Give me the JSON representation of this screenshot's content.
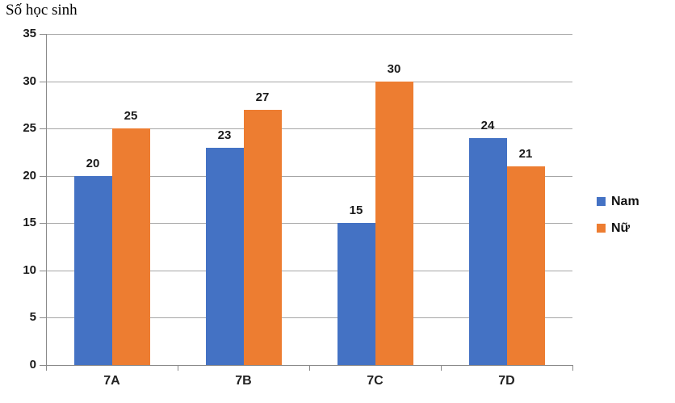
{
  "chart_data": {
    "type": "bar",
    "title": "Số học sinh",
    "categories": [
      "7A",
      "7B",
      "7C",
      "7D"
    ],
    "series": [
      {
        "name": "Nam",
        "color": "#4472C4",
        "values": [
          20,
          23,
          15,
          24
        ]
      },
      {
        "name": "Nữ",
        "color": "#ED7D31",
        "values": [
          25,
          27,
          30,
          21
        ]
      }
    ],
    "yticks": [
      0,
      5,
      10,
      15,
      20,
      25,
      30,
      35
    ],
    "ylim": [
      0,
      35
    ],
    "ytick_step": 5,
    "xlabel": "",
    "ylabel": "Số học sinh",
    "grid": true,
    "data_labels": true,
    "legend_position": "right"
  },
  "colors": {
    "gridline": "#A6A6A6",
    "axis": "#8A8A8A",
    "text": "#1A1A1A",
    "background": "#FFFFFF"
  }
}
